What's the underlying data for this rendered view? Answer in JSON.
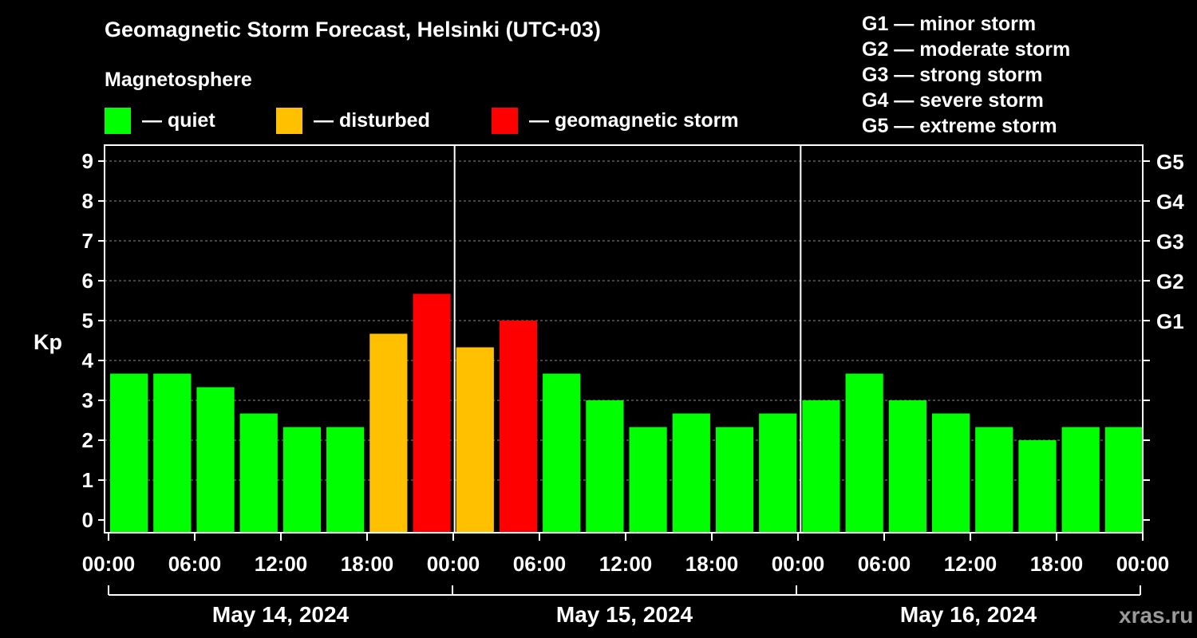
{
  "chart_data": {
    "type": "bar",
    "title": "Geomagnetic Storm Forecast, Helsinki (UTC+03)",
    "subtitle": "Magnetosphere",
    "ylabel": "Kp",
    "ylim": [
      0,
      9
    ],
    "yticks": [
      "0",
      "1",
      "2",
      "3",
      "4",
      "5",
      "6",
      "7",
      "8",
      "9"
    ],
    "right_ticks": [
      {
        "label": "G1",
        "kp": 5
      },
      {
        "label": "G2",
        "kp": 6
      },
      {
        "label": "G3",
        "kp": 7
      },
      {
        "label": "G4",
        "kp": 8
      },
      {
        "label": "G5",
        "kp": 9
      }
    ],
    "right_minor_ticks": [
      0,
      1,
      2,
      3,
      4
    ],
    "xtick_labels": [
      "00:00",
      "06:00",
      "12:00",
      "18:00",
      "00:00",
      "06:00",
      "12:00",
      "18:00",
      "00:00",
      "06:00",
      "12:00",
      "18:00",
      "00:00"
    ],
    "days": [
      "May 14, 2024",
      "May 15, 2024",
      "May 16, 2024"
    ],
    "interval_hours": 3,
    "values": [
      3.67,
      3.67,
      3.33,
      2.67,
      2.33,
      2.33,
      4.67,
      5.67,
      4.33,
      5.0,
      3.67,
      3.0,
      2.33,
      2.67,
      2.33,
      2.67,
      3.0,
      3.67,
      3.0,
      2.67,
      2.33,
      2.0,
      2.33,
      2.33
    ],
    "levels": [
      "quiet",
      "quiet",
      "quiet",
      "quiet",
      "quiet",
      "quiet",
      "disturbed",
      "storm",
      "disturbed",
      "storm",
      "quiet",
      "quiet",
      "quiet",
      "quiet",
      "quiet",
      "quiet",
      "quiet",
      "quiet",
      "quiet",
      "quiet",
      "quiet",
      "quiet",
      "quiet",
      "quiet"
    ],
    "grid": true
  },
  "legend": {
    "items": [
      {
        "key": "quiet",
        "label": "— quiet",
        "color": "#00ff00"
      },
      {
        "key": "disturbed",
        "label": "— disturbed",
        "color": "#ffc000"
      },
      {
        "key": "storm",
        "label": "— geomagnetic storm",
        "color": "#ff0000"
      }
    ]
  },
  "gscale": [
    "G1 — minor storm",
    "G2 — moderate storm",
    "G3 — strong storm",
    "G4 — severe storm",
    "G5 — extreme storm"
  ],
  "watermark": "xras.ru"
}
